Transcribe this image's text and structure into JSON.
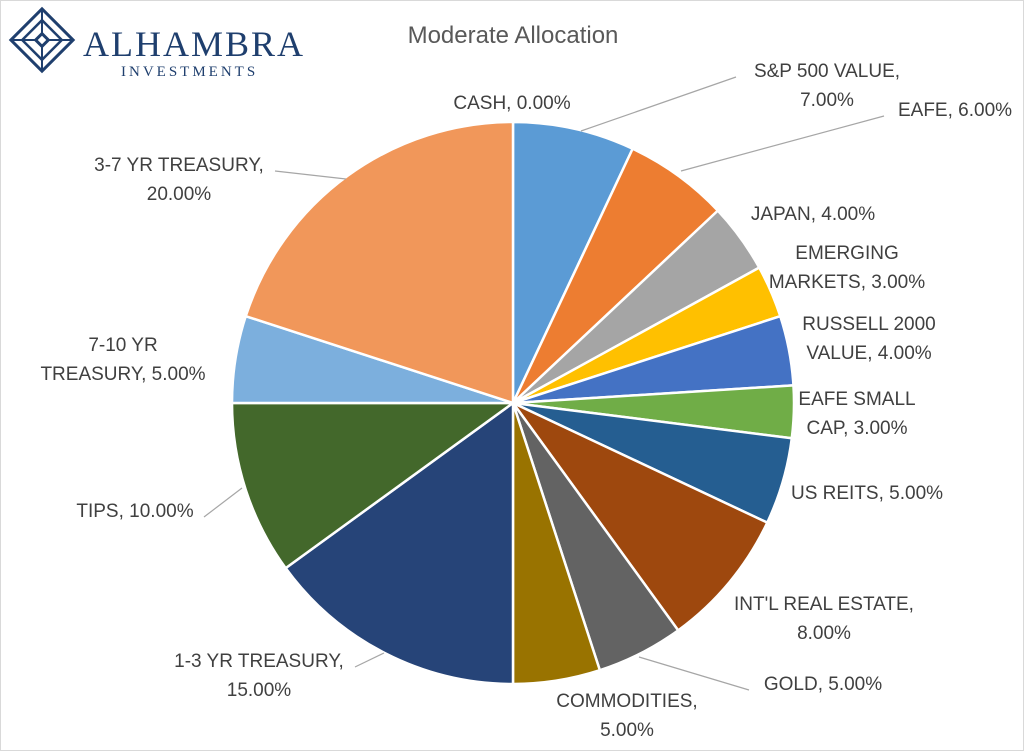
{
  "logo": {
    "name": "ALHAMBRA",
    "sub": "INVESTMENTS",
    "color": "#1f3f6e"
  },
  "chart_data": {
    "type": "pie",
    "title": "Moderate Allocation",
    "start": "12 o'clock, clockwise",
    "slices": [
      {
        "label": "CASH",
        "value": 0.0,
        "display": "0.00%",
        "color": "#5b9bd5"
      },
      {
        "label": "S&P 500 VALUE",
        "value": 7.0,
        "display": "7.00%",
        "color": "#5b9bd5"
      },
      {
        "label": "EAFE",
        "value": 6.0,
        "display": "6.00%",
        "color": "#ed7d31"
      },
      {
        "label": "JAPAN",
        "value": 4.0,
        "display": "4.00%",
        "color": "#a5a5a5"
      },
      {
        "label": "EMERGING MARKETS",
        "value": 3.0,
        "display": "3.00%",
        "color": "#ffc000"
      },
      {
        "label": "RUSSELL 2000 VALUE",
        "value": 4.0,
        "display": "4.00%",
        "color": "#4472c4"
      },
      {
        "label": "EAFE SMALL CAP",
        "value": 3.0,
        "display": "3.00%",
        "color": "#70ad47"
      },
      {
        "label": "US REITS",
        "value": 5.0,
        "display": "5.00%",
        "color": "#255e91"
      },
      {
        "label": "INT'L REAL ESTATE",
        "value": 8.0,
        "display": "8.00%",
        "color": "#9e480e"
      },
      {
        "label": "GOLD",
        "value": 5.0,
        "display": "5.00%",
        "color": "#636363"
      },
      {
        "label": "COMMODITIES",
        "value": 5.0,
        "display": "5.00%",
        "color": "#997300"
      },
      {
        "label": "1-3 YR TREASURY",
        "value": 15.0,
        "display": "15.00%",
        "color": "#264478"
      },
      {
        "label": "TIPS",
        "value": 10.0,
        "display": "10.00%",
        "color": "#43682b"
      },
      {
        "label": "7-10 YR TREASURY",
        "value": 5.0,
        "display": "5.00%",
        "color": "#7cafdd"
      },
      {
        "label": "3-7 YR TREASURY",
        "value": 20.0,
        "display": "20.00%",
        "color": "#f1975a"
      }
    ],
    "label_lines": [
      [
        "CASH, 0.00%"
      ],
      [
        "S&P 500 VALUE,",
        "7.00%"
      ],
      [
        "EAFE, 6.00%"
      ],
      [
        "JAPAN, 4.00%"
      ],
      [
        "EMERGING",
        "MARKETS, 3.00%"
      ],
      [
        "RUSSELL 2000",
        "VALUE, 4.00%"
      ],
      [
        "EAFE SMALL",
        "CAP, 3.00%"
      ],
      [
        "US REITS, 5.00%"
      ],
      [
        "INT'L REAL ESTATE,",
        "8.00%"
      ],
      [
        "GOLD, 5.00%"
      ],
      [
        "COMMODITIES,",
        "5.00%"
      ],
      [
        "1-3 YR TREASURY,",
        "15.00%"
      ],
      [
        "TIPS, 10.00%"
      ],
      [
        "7-10 YR",
        "TREASURY, 5.00%"
      ],
      [
        "3-7 YR TREASURY,",
        "20.00%"
      ]
    ]
  }
}
